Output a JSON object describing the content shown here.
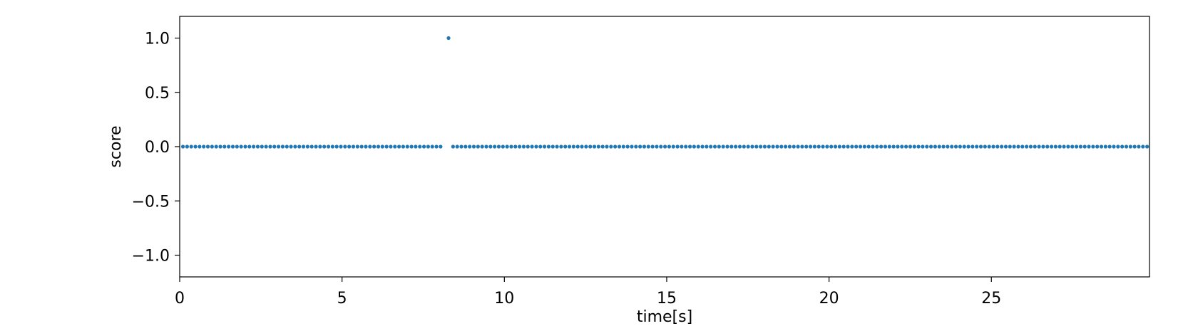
{
  "chart_data": {
    "type": "scatter",
    "title": "",
    "xlabel": "time[s]",
    "ylabel": "score",
    "xlim": [
      0,
      29.87
    ],
    "ylim": [
      -1.2,
      1.2
    ],
    "x_ticks": [
      0,
      5,
      10,
      15,
      20,
      25
    ],
    "x_tick_labels": [
      "0",
      "5",
      "10",
      "15",
      "20",
      "25"
    ],
    "y_ticks": [
      1.0,
      0.5,
      0.0,
      -0.5,
      -1.0
    ],
    "y_tick_labels": [
      "1.0",
      "0.5",
      "0.0",
      "−0.5",
      "−1.0"
    ],
    "grid": false,
    "marker_color": "#1f77b4",
    "series": [
      {
        "x_start": 0.1,
        "x_step": 0.128,
        "count": 233,
        "baseline_value": 0.0,
        "gaps": [
          [
            8.1,
            8.38
          ]
        ],
        "points": [
          {
            "x": 8.28,
            "y": 1.0
          }
        ]
      }
    ]
  }
}
